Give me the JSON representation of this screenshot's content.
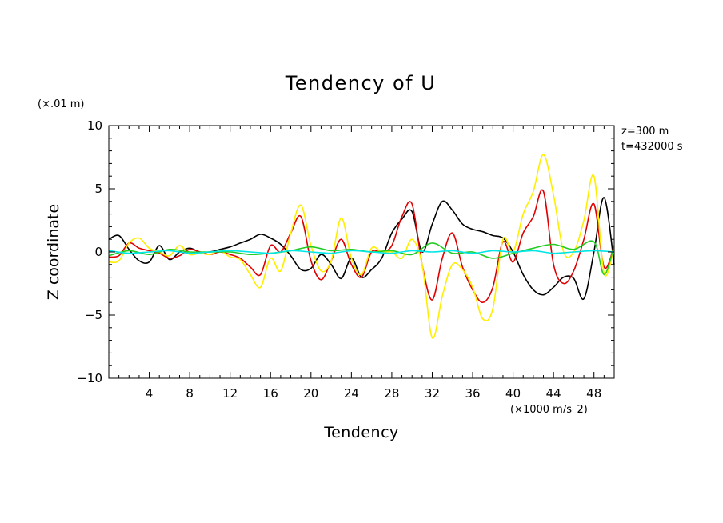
{
  "chart_data": {
    "type": "line",
    "title": "Tendency of U",
    "xlabel": "Tendency",
    "ylabel": "Z coordinate",
    "x_units": "(×1000 m/s¯2)",
    "y_units": "(×.01 m)",
    "annotation_lines": [
      "z=300 m",
      "t=432000 s"
    ],
    "xlim": [
      0,
      50
    ],
    "ylim": [
      -10,
      10
    ],
    "x_ticks": [
      4,
      8,
      12,
      16,
      20,
      24,
      28,
      32,
      36,
      40,
      44,
      48
    ],
    "x_tick_labels": [
      "4",
      "8",
      "12",
      "16",
      "20",
      "24",
      "28",
      "32",
      "36",
      "40",
      "44",
      "48"
    ],
    "y_ticks": [
      -10,
      -5,
      0,
      5,
      10
    ],
    "y_tick_labels": [
      "−10",
      "−5",
      "0",
      "5",
      "10"
    ],
    "grid": false,
    "series": [
      {
        "name": "black",
        "color": "#000000",
        "x": [
          0,
          1,
          2,
          3,
          4,
          5,
          6,
          7,
          8,
          9,
          10,
          11,
          12,
          13,
          14,
          15,
          16,
          17,
          18,
          19,
          20,
          21,
          22,
          23,
          24,
          25,
          26,
          27,
          28,
          29,
          30,
          31,
          32,
          33,
          34,
          35,
          36,
          37,
          38,
          39,
          40,
          41,
          42,
          43,
          44,
          45,
          46,
          47,
          48,
          49,
          50
        ],
        "values": [
          1.0,
          1.3,
          0.2,
          -0.7,
          -0.8,
          0.5,
          -0.6,
          0.0,
          0.3,
          0.0,
          0.0,
          0.2,
          0.4,
          0.7,
          1.0,
          1.4,
          1.1,
          0.6,
          -0.3,
          -1.4,
          -1.3,
          -0.2,
          -1.0,
          -2.1,
          -0.5,
          -2.0,
          -1.4,
          -0.5,
          1.5,
          2.6,
          3.2,
          0.0,
          2.2,
          4.0,
          3.3,
          2.2,
          1.8,
          1.6,
          1.3,
          1.1,
          0.0,
          -1.8,
          -3.0,
          -3.4,
          -2.8,
          -2.0,
          -2.1,
          -3.7,
          0.0,
          4.3,
          -1.0
        ]
      },
      {
        "name": "red",
        "color": "#e00000",
        "x": [
          0,
          1,
          2,
          3,
          4,
          5,
          6,
          7,
          8,
          9,
          10,
          11,
          12,
          13,
          14,
          15,
          16,
          17,
          18,
          19,
          20,
          21,
          22,
          23,
          24,
          25,
          26,
          27,
          28,
          29,
          30,
          31,
          32,
          33,
          34,
          35,
          36,
          37,
          38,
          39,
          40,
          41,
          42,
          43,
          44,
          45,
          46,
          47,
          48,
          49,
          50
        ],
        "values": [
          -0.4,
          -0.3,
          0.7,
          0.3,
          0.1,
          -0.1,
          -0.5,
          -0.3,
          0.2,
          0.0,
          -0.2,
          0.0,
          -0.2,
          -0.5,
          -1.2,
          -1.8,
          0.5,
          0.0,
          1.5,
          2.8,
          -0.7,
          -2.2,
          -0.7,
          1.0,
          -1.0,
          -2.0,
          0.0,
          0.0,
          0.5,
          2.8,
          3.8,
          -1.0,
          -3.8,
          -0.5,
          1.5,
          -1.2,
          -3.0,
          -4.0,
          -2.8,
          0.8,
          -0.8,
          1.5,
          2.8,
          4.8,
          -1.0,
          -2.5,
          -1.5,
          1.0,
          3.8,
          -1.2,
          0.5
        ]
      },
      {
        "name": "yellow",
        "color": "#ffee00",
        "x": [
          0,
          1,
          2,
          3,
          4,
          5,
          6,
          7,
          8,
          9,
          10,
          11,
          12,
          13,
          14,
          15,
          16,
          17,
          18,
          19,
          20,
          21,
          22,
          23,
          24,
          25,
          26,
          27,
          28,
          29,
          30,
          31,
          32,
          33,
          34,
          35,
          36,
          37,
          38,
          39,
          40,
          41,
          42,
          43,
          44,
          45,
          46,
          47,
          48,
          49,
          50
        ],
        "values": [
          -0.8,
          -0.7,
          0.7,
          1.1,
          0.3,
          0.0,
          -0.3,
          0.5,
          -0.2,
          -0.1,
          -0.2,
          0.1,
          -0.4,
          -0.6,
          -1.8,
          -2.8,
          -0.5,
          -1.5,
          1.5,
          3.7,
          0.5,
          -1.5,
          -0.7,
          2.7,
          -0.5,
          -1.8,
          0.3,
          0.0,
          0.0,
          -0.5,
          1.0,
          -1.0,
          -6.8,
          -3.5,
          -1.0,
          -1.4,
          -2.8,
          -5.3,
          -4.5,
          1.0,
          0.0,
          3.0,
          4.8,
          7.7,
          4.5,
          0.0,
          0.0,
          2.5,
          6.0,
          -1.7,
          0.4
        ]
      },
      {
        "name": "green",
        "color": "#22cc22",
        "x": [
          0,
          2,
          4,
          6,
          8,
          10,
          12,
          14,
          16,
          18,
          20,
          22,
          24,
          26,
          28,
          30,
          32,
          34,
          36,
          38,
          40,
          42,
          44,
          46,
          48,
          49,
          50
        ],
        "values": [
          -0.3,
          0.1,
          -0.2,
          0.2,
          0.0,
          0.0,
          0.0,
          -0.2,
          -0.1,
          0.1,
          0.4,
          0.1,
          0.2,
          0.0,
          0.1,
          -0.2,
          0.7,
          -0.1,
          0.0,
          -0.5,
          -0.1,
          0.3,
          0.6,
          0.2,
          0.8,
          -1.8,
          0.5
        ]
      },
      {
        "name": "cyan",
        "color": "#00e5e5",
        "x": [
          0,
          2,
          4,
          6,
          8,
          10,
          12,
          14,
          16,
          18,
          20,
          22,
          24,
          26,
          28,
          30,
          32,
          34,
          36,
          38,
          40,
          42,
          44,
          46,
          48,
          50
        ],
        "values": [
          0.1,
          -0.1,
          0.0,
          0.1,
          -0.1,
          0.0,
          0.1,
          0.0,
          -0.1,
          0.1,
          0.0,
          -0.1,
          0.1,
          0.0,
          -0.1,
          0.1,
          0.0,
          0.1,
          -0.1,
          0.1,
          0.0,
          0.1,
          -0.1,
          0.0,
          0.1,
          0.0
        ]
      }
    ]
  }
}
